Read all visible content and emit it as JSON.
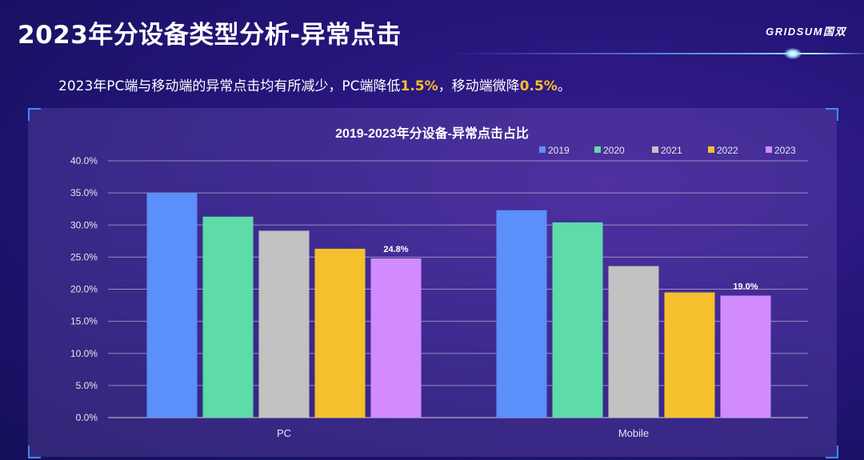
{
  "header": {
    "title": "2023年分设备类型分析-异常点击",
    "logo": "GRIDSUM国双"
  },
  "summary": {
    "text_before": "2023年PC端与移动端的异常点击均有所减少，PC端降低",
    "pc_drop": "1.5%",
    "text_middle": "，移动端微降",
    "mobile_drop": "0.5%",
    "text_after": "。"
  },
  "colors": {
    "accent_highlight": "#f5c02b",
    "series": [
      "#5b8ff9",
      "#5ddba8",
      "#c2c2c2",
      "#f5c02b",
      "#d18bff"
    ]
  },
  "chart_data": {
    "type": "bar",
    "title": "2019-2023年分设备-异常点击占比",
    "categories": [
      "PC",
      "Mobile"
    ],
    "series": [
      {
        "name": "2019",
        "values": [
          35.0,
          32.3
        ]
      },
      {
        "name": "2020",
        "values": [
          31.3,
          30.4
        ]
      },
      {
        "name": "2021",
        "values": [
          29.1,
          23.6
        ]
      },
      {
        "name": "2022",
        "values": [
          26.3,
          19.5
        ]
      },
      {
        "name": "2023",
        "values": [
          24.8,
          19.0
        ]
      }
    ],
    "data_labels": [
      {
        "series": "2023",
        "category": "PC",
        "text": "24.8%"
      },
      {
        "series": "2023",
        "category": "Mobile",
        "text": "19.0%"
      }
    ],
    "ylim": [
      0,
      40
    ],
    "yticks": [
      "0.0%",
      "5.0%",
      "10.0%",
      "15.0%",
      "20.0%",
      "25.0%",
      "30.0%",
      "35.0%",
      "40.0%"
    ],
    "xlabel": "",
    "ylabel": "",
    "grid": true,
    "legend": "top-right"
  }
}
